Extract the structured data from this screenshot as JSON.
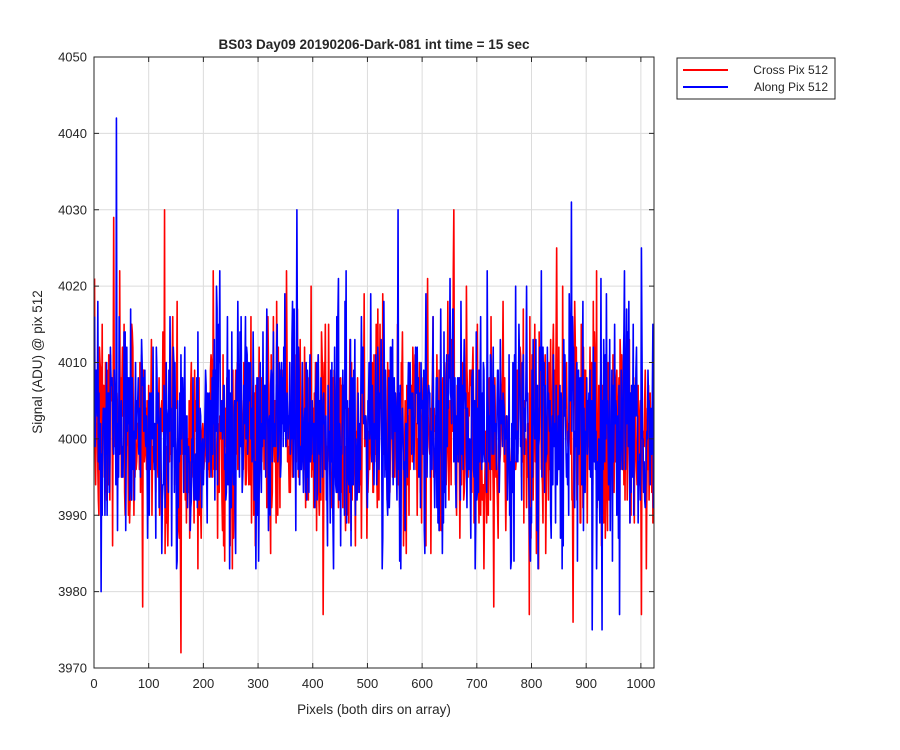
{
  "chart_data": {
    "type": "line",
    "title": "BS03 Day09 20190206-Dark-081 int time = 15 sec",
    "xlabel": "Pixels (both dirs on array)",
    "ylabel": "Signal (ADU) @ pix 512",
    "xlim": [
      0,
      1024
    ],
    "ylim": [
      3970,
      4050
    ],
    "xticks": [
      0,
      100,
      200,
      300,
      400,
      500,
      600,
      700,
      800,
      900,
      1000
    ],
    "yticks": [
      3970,
      3980,
      3990,
      4000,
      4010,
      4020,
      4030,
      4040,
      4050
    ],
    "grid": true,
    "legend_position": "outside-top-right",
    "series": [
      {
        "name": "Cross Pix 512",
        "color": "#ff0000",
        "noise": {
          "n": 1024,
          "mean": 4001,
          "std": 7.2,
          "seed": 7
        },
        "highlights": [
          {
            "x": 35,
            "y": 4029
          },
          {
            "x": 128,
            "y": 4030
          },
          {
            "x": 158,
            "y": 3972
          },
          {
            "x": 88,
            "y": 3978
          },
          {
            "x": 418,
            "y": 3977
          },
          {
            "x": 657,
            "y": 4030
          },
          {
            "x": 730,
            "y": 3978
          },
          {
            "x": 795,
            "y": 3977
          },
          {
            "x": 845,
            "y": 4025
          },
          {
            "x": 875,
            "y": 3976
          },
          {
            "x": 1000,
            "y": 3977
          }
        ]
      },
      {
        "name": "Along Pix 512",
        "color": "#0000ff",
        "noise": {
          "n": 1024,
          "mean": 4001,
          "std": 7.5,
          "seed": 23
        },
        "highlights": [
          {
            "x": 40,
            "y": 4042
          },
          {
            "x": 42,
            "y": 3988
          },
          {
            "x": 370,
            "y": 4030
          },
          {
            "x": 555,
            "y": 4030
          },
          {
            "x": 872,
            "y": 4031
          },
          {
            "x": 910,
            "y": 3975
          },
          {
            "x": 928,
            "y": 3975
          },
          {
            "x": 1000,
            "y": 4025
          },
          {
            "x": 960,
            "y": 3977
          },
          {
            "x": 12,
            "y": 3980
          }
        ]
      }
    ]
  }
}
